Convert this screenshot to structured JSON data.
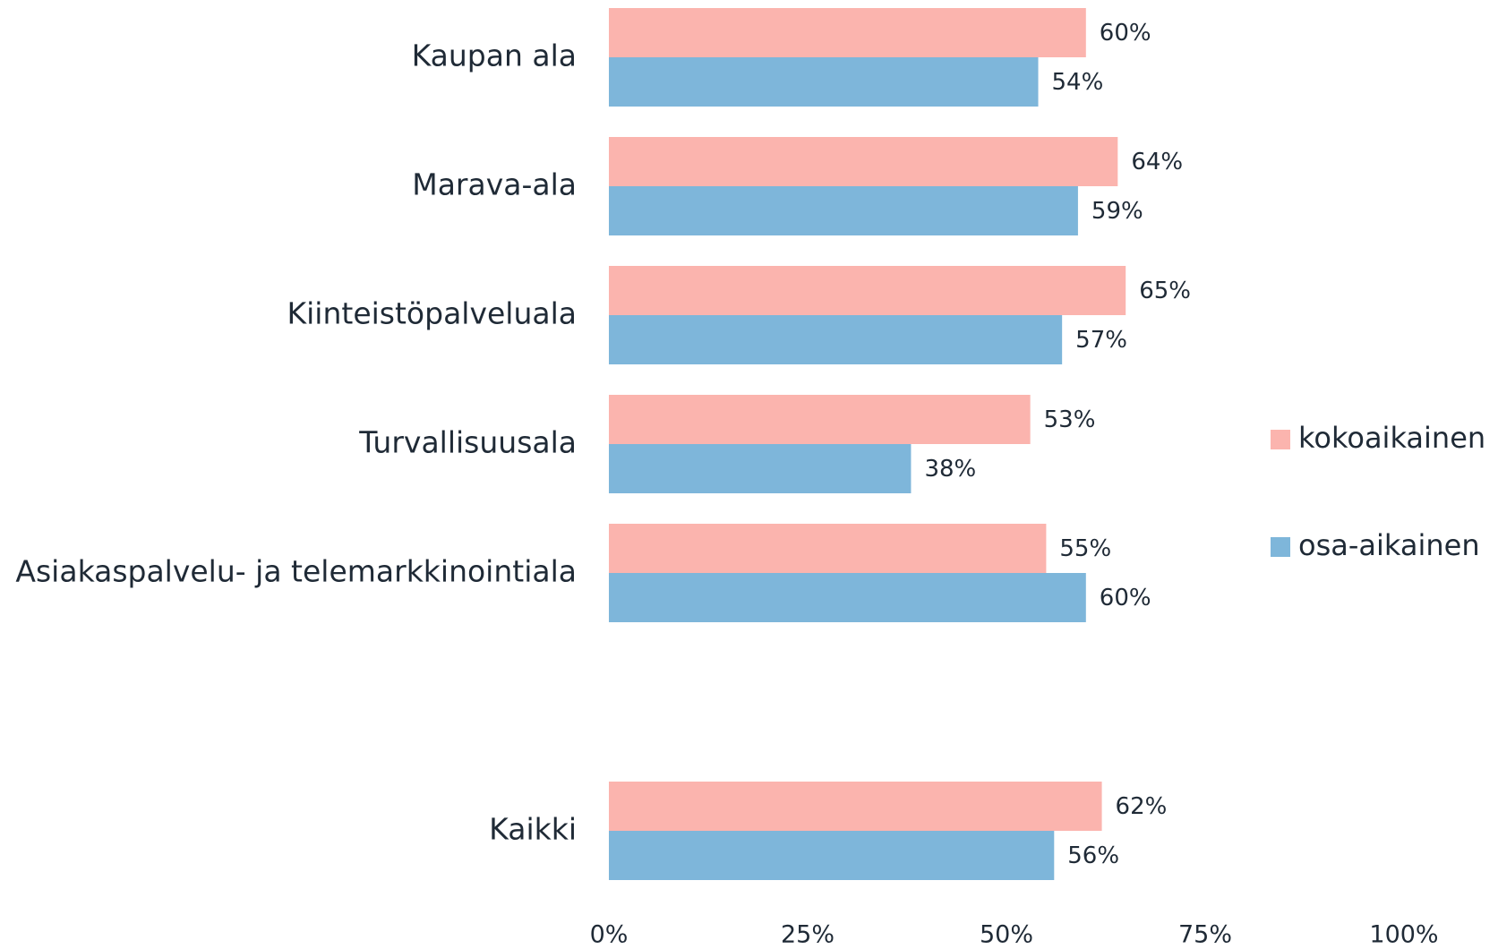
{
  "chart_data": {
    "type": "hbar",
    "categories": [
      "Kaupan ala",
      "Marava-ala",
      "Kiinteistöpalveluala",
      "Turvallisuusala",
      "Asiakaspalvelu- ja telemarkkinointiala",
      null,
      "Kaikki"
    ],
    "series": [
      {
        "name": "kokoaikainen",
        "color": "#fbb4ae",
        "values": [
          60,
          64,
          65,
          53,
          55,
          null,
          62
        ],
        "value_labels": [
          "60%",
          "64%",
          "65%",
          "53%",
          "55%",
          null,
          "62%"
        ]
      },
      {
        "name": "osa-aikainen",
        "color": "#7eb6da",
        "values": [
          54,
          59,
          57,
          38,
          60,
          null,
          56
        ],
        "value_labels": [
          "54%",
          "59%",
          "57%",
          "38%",
          "60%",
          null,
          "56%"
        ]
      }
    ],
    "xlim": [
      0,
      100
    ],
    "xticks": [
      {
        "value": 0,
        "label": "0%"
      },
      {
        "value": 25,
        "label": "25%"
      },
      {
        "value": 50,
        "label": "50%"
      },
      {
        "value": 75,
        "label": "75%"
      },
      {
        "value": 100,
        "label": "100%"
      }
    ],
    "legend": "right"
  }
}
